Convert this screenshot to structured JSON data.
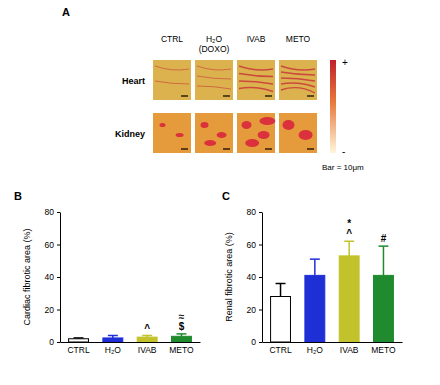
{
  "panel_a": {
    "panel_label": "A",
    "columns": [
      "CTRL",
      "H₂O (DOXO)",
      "IVAB",
      "METO"
    ],
    "rows": [
      "Heart",
      "Kidney"
    ],
    "color_scale": {
      "max_label": "+",
      "min_label": "-"
    },
    "scale_bar": "Bar = 10μm"
  },
  "chart_data": [
    {
      "type": "bar",
      "panel_label": "B",
      "ylabel": "Cardiac fibrotic area (%)",
      "categories": [
        "CTRL",
        "H₂O",
        "IVAB",
        "METO"
      ],
      "values": [
        2,
        2.5,
        3,
        3.5
      ],
      "errors": [
        0.5,
        1.5,
        1,
        1.5
      ],
      "colors": [
        "#ffffff",
        "#1f2fd6",
        "#c2c22c",
        "#1f8a2e"
      ],
      "ylim": [
        0,
        80
      ],
      "yticks": [
        0,
        20,
        40,
        60,
        80
      ],
      "significance": [
        [],
        [],
        [
          "^"
        ],
        [
          "≈",
          "$"
        ]
      ]
    },
    {
      "type": "bar",
      "panel_label": "C",
      "ylabel": "Renal fibrotic area (%)",
      "categories": [
        "CTRL",
        "H₂O",
        "IVAB",
        "METO"
      ],
      "values": [
        28,
        41,
        53,
        41
      ],
      "errors": [
        8,
        10,
        9,
        18
      ],
      "colors": [
        "#ffffff",
        "#1f2fd6",
        "#c2c22c",
        "#1f8a2e"
      ],
      "ylim": [
        0,
        80
      ],
      "yticks": [
        0,
        20,
        40,
        60,
        80
      ],
      "significance": [
        [],
        [],
        [
          "*",
          "^"
        ],
        [
          "#"
        ]
      ]
    }
  ]
}
